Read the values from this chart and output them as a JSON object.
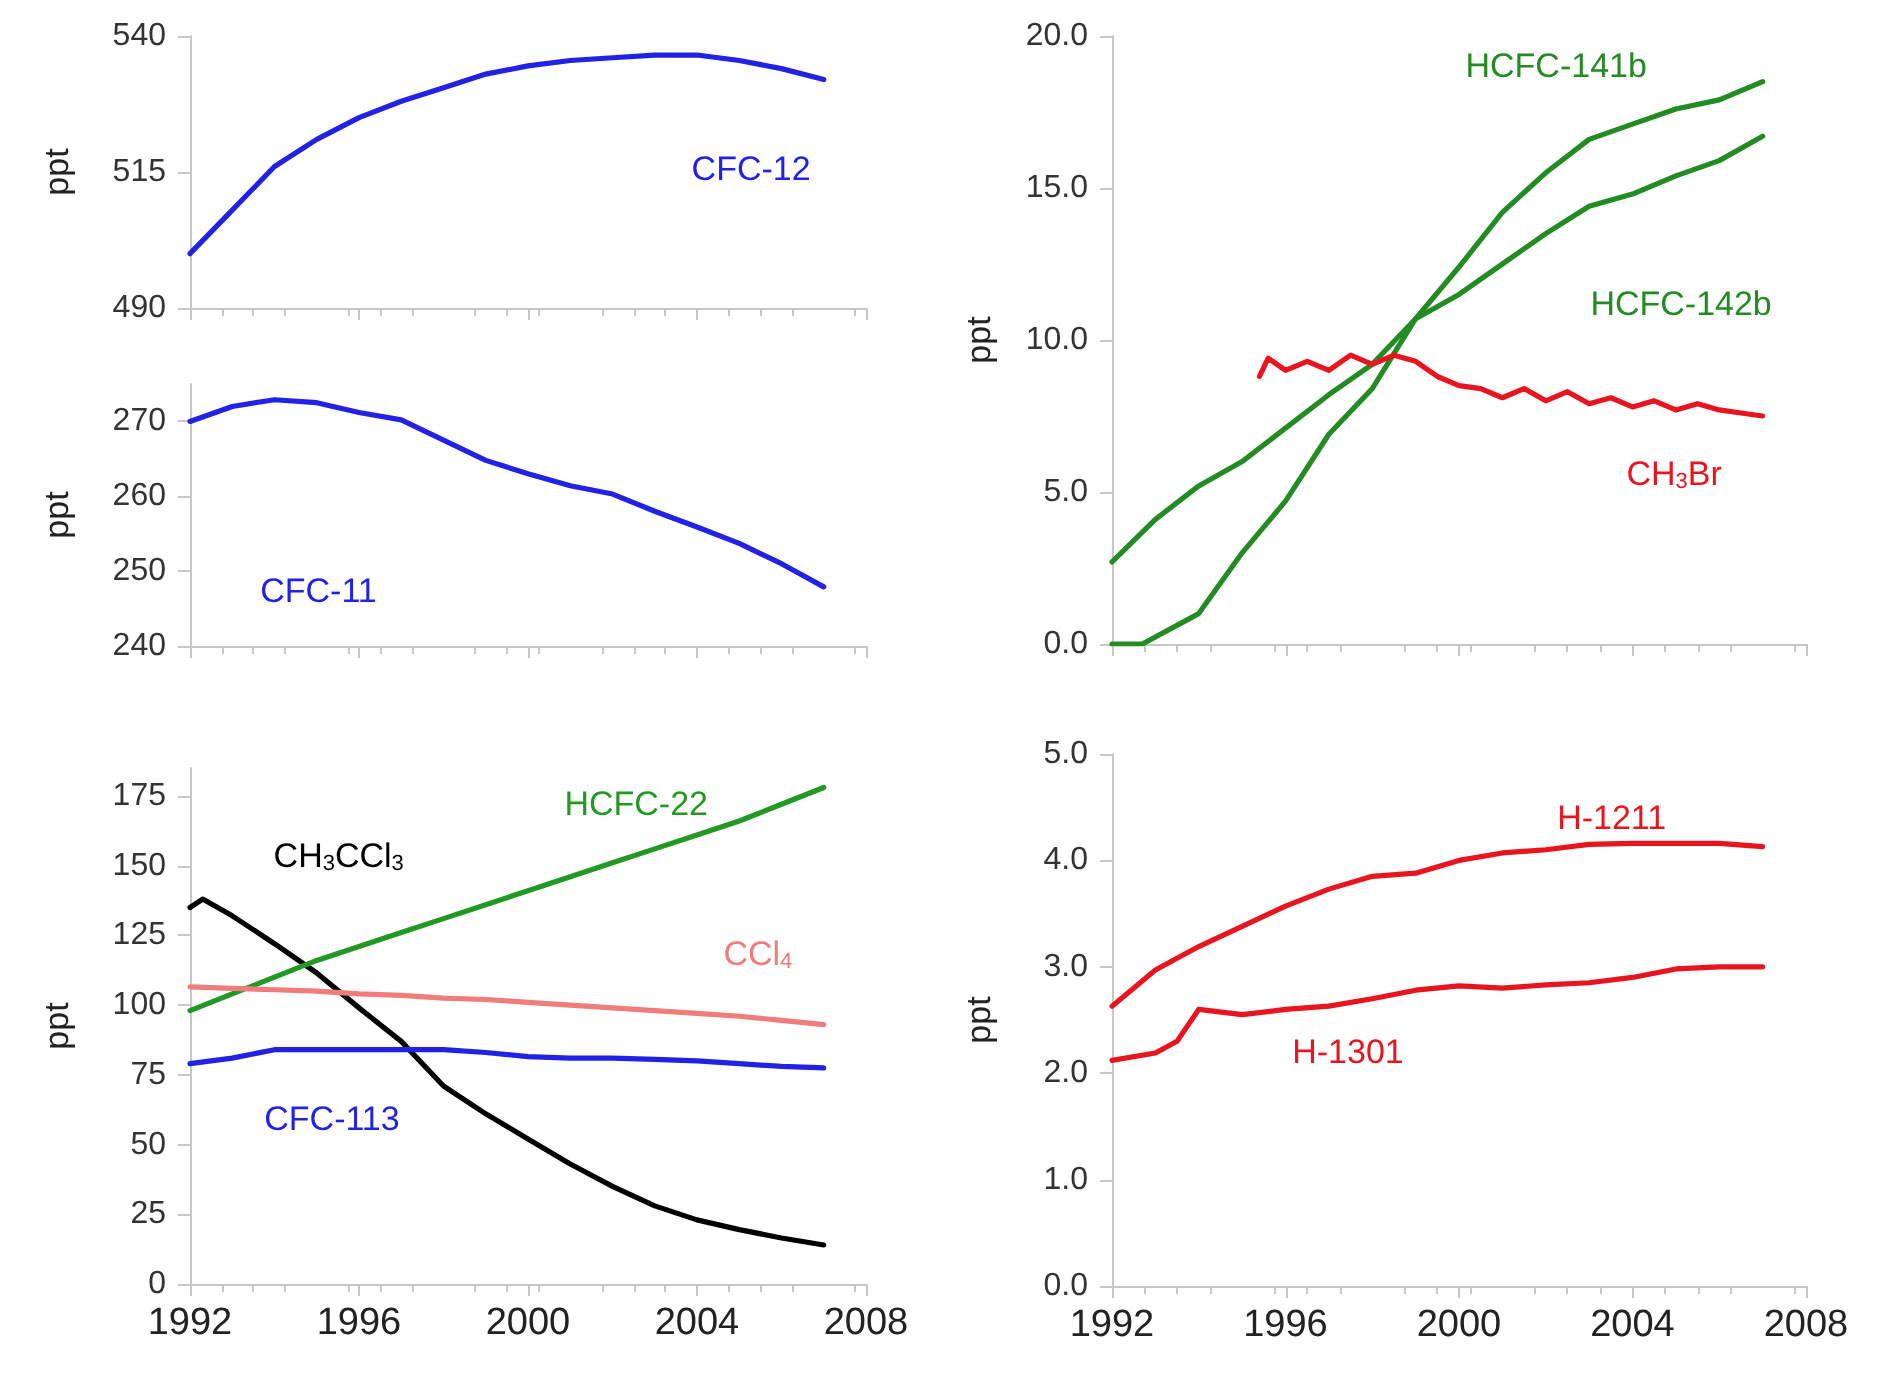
{
  "chart_data": [
    {
      "type": "line",
      "ylabel": "ppt",
      "xlim": [
        1992,
        2008
      ],
      "xticks": [
        1992,
        1996,
        2000,
        2004,
        2008
      ],
      "ylim": [
        490,
        540
      ],
      "yticks": [
        490,
        515,
        540
      ],
      "tick_labels": "y",
      "series": [
        {
          "name": "CFC-12",
          "color": "#2222e6",
          "x": [
            1992,
            1993,
            1994,
            1995,
            1996,
            1997,
            1998,
            1999,
            2000,
            2001,
            2002,
            2003,
            2004,
            2005,
            2006,
            2007
          ],
          "values": [
            500,
            508,
            516,
            521,
            525,
            528,
            530.5,
            533,
            534.5,
            535.5,
            536,
            536.5,
            536.5,
            535.5,
            534,
            532
          ]
        }
      ]
    },
    {
      "type": "line",
      "ylabel": "ppt",
      "xlim": [
        1992,
        2008
      ],
      "xticks": [
        1992,
        1996,
        2000,
        2004,
        2008
      ],
      "ylim": [
        240,
        275
      ],
      "yticks": [
        240,
        250,
        260,
        270
      ],
      "tick_labels": "y",
      "series": [
        {
          "name": "CFC-11",
          "color": "#2222e6",
          "x": [
            1992,
            1993,
            1994,
            1995,
            1996,
            1997,
            1998,
            1999,
            2000,
            2001,
            2002,
            2003,
            2004,
            2005,
            2006,
            2007
          ],
          "values": [
            270,
            272,
            272.9,
            272.5,
            271.2,
            270.2,
            267.5,
            264.8,
            263,
            261.4,
            260.3,
            258,
            255.9,
            253.7,
            251,
            247.9
          ]
        }
      ]
    },
    {
      "type": "line",
      "ylabel": "ppt",
      "xlim": [
        1992,
        2008
      ],
      "xticks": [
        1992,
        1996,
        2000,
        2004,
        2008
      ],
      "ylim": [
        0,
        185
      ],
      "yticks": [
        0,
        25,
        50,
        75,
        100,
        125,
        150,
        175
      ],
      "series": [
        {
          "name": "CH$_{3}$CCl$_{3}$",
          "color": "#000000",
          "x": [
            1992,
            1992.3,
            1993,
            1994,
            1995,
            1996,
            1997,
            1998,
            1999,
            2000,
            2001,
            2002,
            2003,
            2004,
            2005,
            2006,
            2007
          ],
          "values": [
            135,
            138,
            132,
            122,
            111.5,
            99,
            87,
            71,
            61,
            52,
            43,
            35,
            28,
            23,
            19.5,
            16.5,
            14
          ]
        },
        {
          "name": "HCFC-22",
          "color": "#229922",
          "x": [
            1992,
            1993,
            1994,
            1995,
            1996,
            1997,
            1998,
            1999,
            2000,
            2001,
            2002,
            2003,
            2004,
            2005,
            2006,
            2007
          ],
          "values": [
            98,
            104,
            110,
            116,
            121,
            126,
            131,
            136,
            141,
            146,
            151,
            156,
            161,
            166,
            172,
            178
          ]
        },
        {
          "name": "CCl$_{4}$",
          "color": "#f07c7c",
          "x": [
            1992,
            1993,
            1994,
            1995,
            1996,
            1997,
            1998,
            1999,
            2000,
            2001,
            2002,
            2003,
            2004,
            2005,
            2006,
            2007
          ],
          "values": [
            106.5,
            106,
            105.5,
            105,
            104,
            103.5,
            102.5,
            102,
            101,
            100,
            99,
            98,
            97,
            96,
            94.5,
            93
          ]
        },
        {
          "name": "CFC-113",
          "color": "#2222e6",
          "x": [
            1992,
            1993,
            1994,
            1995,
            1996,
            1997,
            1998,
            1999,
            2000,
            2001,
            2002,
            2003,
            2004,
            2005,
            2006,
            2007
          ],
          "values": [
            79,
            81,
            84,
            84,
            84,
            84,
            84,
            83,
            81.5,
            81,
            81,
            80.5,
            80,
            79,
            78,
            77.5
          ]
        }
      ]
    },
    {
      "type": "line",
      "ylabel": "ppt",
      "xlim": [
        1992,
        2008
      ],
      "xticks": [
        1992,
        1996,
        2000,
        2004,
        2008
      ],
      "ylim": [
        0,
        20
      ],
      "yticks": [
        {
          "value": 0,
          "label": "0.0"
        },
        {
          "value": 5,
          "label": "5.0"
        },
        {
          "value": 10,
          "label": "10.0"
        },
        {
          "value": 15,
          "label": "15.0"
        },
        {
          "value": 20,
          "label": "20.0"
        }
      ],
      "tick_labels": "y",
      "series": [
        {
          "name": "HCFC-141b",
          "color": "#228b22",
          "x": [
            1992,
            1992.7,
            1994,
            1995,
            1996,
            1997,
            1998,
            1999,
            2000,
            2001,
            2002,
            2003,
            2004,
            2005,
            2006,
            2007
          ],
          "values": [
            0,
            0,
            1,
            3,
            4.7,
            6.9,
            8.4,
            10.7,
            12.4,
            14.2,
            15.5,
            16.6,
            17.1,
            17.6,
            17.9,
            18.5
          ]
        },
        {
          "name": "HCFC-142b",
          "color": "#228b22",
          "x": [
            1992,
            1993,
            1994,
            1995,
            1996,
            1997,
            1998,
            1999,
            2000,
            2001,
            2002,
            2003,
            2004,
            2005,
            2006,
            2007
          ],
          "values": [
            2.7,
            4.1,
            5.2,
            6,
            7.1,
            8.2,
            9.2,
            10.7,
            11.5,
            12.5,
            13.5,
            14.4,
            14.8,
            15.4,
            15.9,
            16.7
          ]
        },
        {
          "name": "CH$_{3}$Br",
          "color": "#e8141e",
          "x": [
            1995.4,
            1995.6,
            1996,
            1996.5,
            1997,
            1997.5,
            1998,
            1998.5,
            1999,
            1999.5,
            2000,
            2000.5,
            2001,
            2001.5,
            2002,
            2002.5,
            2003,
            2003.5,
            2004,
            2004.5,
            2005,
            2005.5,
            2006,
            2006.5,
            2007
          ],
          "values": [
            8.8,
            9.4,
            9,
            9.3,
            9,
            9.5,
            9.2,
            9.5,
            9.3,
            8.8,
            8.5,
            8.4,
            8.1,
            8.4,
            8,
            8.3,
            7.9,
            8.1,
            7.8,
            8,
            7.7,
            7.9,
            7.7,
            7.6,
            7.5
          ]
        }
      ]
    },
    {
      "type": "line",
      "ylabel": "ppt",
      "xlim": [
        1992,
        2008
      ],
      "xticks": [
        1992,
        1996,
        2000,
        2004,
        2008
      ],
      "ylim": [
        0,
        5
      ],
      "yticks": [
        {
          "value": 0,
          "label": "0.0"
        },
        {
          "value": 1,
          "label": "1.0"
        },
        {
          "value": 2,
          "label": "2.0"
        },
        {
          "value": 3,
          "label": "3.0"
        },
        {
          "value": 4,
          "label": "4.0"
        },
        {
          "value": 5,
          "label": "5.0"
        }
      ],
      "series": [
        {
          "name": "H-1211",
          "color": "#e8141e",
          "x": [
            1992,
            1993,
            1994,
            1995,
            1996,
            1997,
            1998,
            1999,
            2000,
            2001,
            2002,
            2003,
            2004,
            2005,
            2006,
            2007
          ],
          "values": [
            2.63,
            2.97,
            3.19,
            3.38,
            3.57,
            3.73,
            3.85,
            3.88,
            4,
            4.07,
            4.1,
            4.15,
            4.16,
            4.16,
            4.16,
            4.13
          ]
        },
        {
          "name": "H-1301",
          "color": "#e8141e",
          "x": [
            1992,
            1993,
            1993.5,
            1994,
            1995,
            1996,
            1997,
            1998,
            1999,
            2000,
            2001,
            2002,
            2003,
            2004,
            2005,
            2006,
            2007
          ],
          "values": [
            2.12,
            2.19,
            2.3,
            2.6,
            2.55,
            2.6,
            2.63,
            2.7,
            2.78,
            2.82,
            2.8,
            2.83,
            2.85,
            2.9,
            2.98,
            3,
            3
          ]
        }
      ]
    }
  ]
}
